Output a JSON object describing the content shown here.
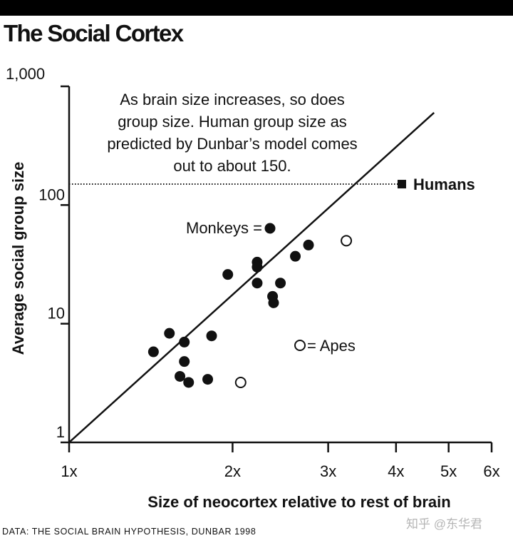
{
  "header": {
    "title": "The Social Cortex"
  },
  "chart_data": {
    "type": "scatter",
    "title": "The Social Cortex",
    "xlabel": "Size of neocortex relative to rest of brain",
    "ylabel": "Average social group size",
    "x_scale": "log",
    "y_scale": "log",
    "xlim": [
      1,
      6
    ],
    "ylim": [
      1,
      1000
    ],
    "x_ticks": [
      {
        "value": 1,
        "label": "1x"
      },
      {
        "value": 2,
        "label": "2x"
      },
      {
        "value": 3,
        "label": "3x"
      },
      {
        "value": 4,
        "label": "4x"
      },
      {
        "value": 5,
        "label": "5x"
      },
      {
        "value": 6,
        "label": "6x"
      }
    ],
    "y_ticks": [
      {
        "value": 1,
        "label": "1"
      },
      {
        "value": 10,
        "label": "10"
      },
      {
        "value": 100,
        "label": "100"
      },
      {
        "value": 1000,
        "label": "1,000"
      }
    ],
    "annotation": "As brain size increases, so does group size. Human group size as predicted by Dunbar’s model comes out to about 150.",
    "annotation_lines": [
      "As brain size increases, so does",
      "group size. Human group size as",
      "predicted by Dunbar’s model comes",
      "out to about 150."
    ],
    "legend": [
      {
        "label": "Monkeys =",
        "marker": "filled-circle",
        "position": "left-of-marker"
      },
      {
        "label": "= Apes",
        "marker": "open-circle",
        "position": "right-of-marker"
      }
    ],
    "series": [
      {
        "name": "Monkeys",
        "marker": "filled-circle",
        "points": [
          {
            "x": 1.43,
            "y": 5.8
          },
          {
            "x": 1.53,
            "y": 8.3
          },
          {
            "x": 1.6,
            "y": 3.6
          },
          {
            "x": 1.63,
            "y": 7.0
          },
          {
            "x": 1.63,
            "y": 4.8
          },
          {
            "x": 1.66,
            "y": 3.2
          },
          {
            "x": 1.8,
            "y": 3.4
          },
          {
            "x": 1.83,
            "y": 7.9
          },
          {
            "x": 1.96,
            "y": 26
          },
          {
            "x": 2.22,
            "y": 33
          },
          {
            "x": 2.22,
            "y": 30
          },
          {
            "x": 2.22,
            "y": 22
          },
          {
            "x": 2.37,
            "y": 17
          },
          {
            "x": 2.38,
            "y": 15
          },
          {
            "x": 2.45,
            "y": 22
          },
          {
            "x": 2.61,
            "y": 37
          },
          {
            "x": 2.76,
            "y": 46
          }
        ]
      },
      {
        "name": "Apes",
        "marker": "open-circle",
        "points": [
          {
            "x": 2.07,
            "y": 3.2
          },
          {
            "x": 3.24,
            "y": 50
          }
        ]
      },
      {
        "name": "Humans",
        "marker": "filled-square",
        "points": [
          {
            "x": 4.1,
            "y": 150
          }
        ]
      }
    ],
    "regression_line": {
      "from": {
        "x": 1,
        "y": 1
      },
      "to": {
        "x": 4.7,
        "y": 600
      }
    },
    "reference_line": {
      "y": 150,
      "style": "dotted"
    },
    "point_labels": [
      {
        "text": "Humans",
        "series": "Humans"
      }
    ],
    "grid": false
  },
  "footer": {
    "source": "DATA: THE SOCIAL BRAIN HYPOTHESIS, DUNBAR 1998",
    "watermark": "知乎 @东华君"
  },
  "colors": {
    "ink": "#111111",
    "background": "#ffffff",
    "watermark": "#b5b5b5"
  }
}
